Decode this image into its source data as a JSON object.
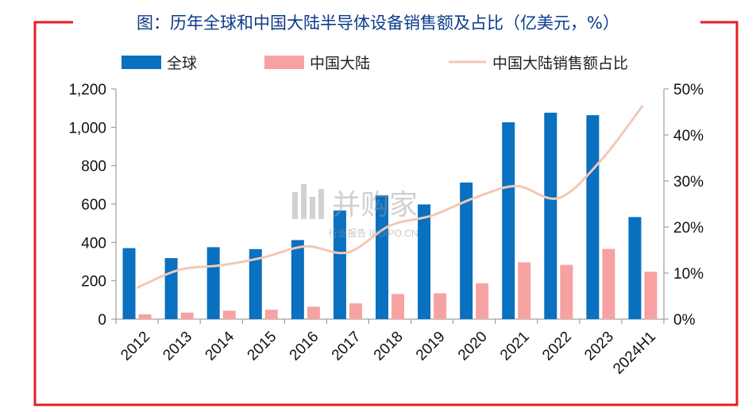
{
  "colors": {
    "frame": "#e41e26",
    "title": "#0b3a8c",
    "global": "#0a70c0",
    "china": "#f7a2a2",
    "share": "#f2c9b4",
    "axis": "#8c8c8c"
  },
  "watermark": {
    "brand": "并购家",
    "sub": "行业报告 IPOIPO.CN"
  },
  "chart_data": {
    "type": "bar",
    "title": "图：历年全球和中国大陆半导体设备销售额及占比（亿美元，%）",
    "categories": [
      "2012",
      "2013",
      "2014",
      "2015",
      "2016",
      "2017",
      "2018",
      "2019",
      "2020",
      "2021",
      "2022",
      "2023",
      "2024H1"
    ],
    "series": [
      {
        "name": "全球",
        "type": "bar",
        "axis": "left",
        "values": [
          370,
          318,
          375,
          365,
          412,
          566,
          645,
          598,
          712,
          1026,
          1076,
          1063,
          532
        ]
      },
      {
        "name": "中国大陆",
        "type": "bar",
        "axis": "left",
        "values": [
          25,
          34,
          44,
          49,
          65,
          82,
          131,
          135,
          187,
          296,
          283,
          366,
          247
        ]
      },
      {
        "name": "中国大陆销售额占比",
        "type": "line",
        "axis": "right",
        "values": [
          6.8,
          10.7,
          11.7,
          13.4,
          15.8,
          14.5,
          20.3,
          22.5,
          26.3,
          28.9,
          26.3,
          34.4,
          46.4
        ]
      }
    ],
    "y_left": {
      "min": 0,
      "max": 1200,
      "ticks": [
        "0",
        "200",
        "400",
        "600",
        "800",
        "1,000",
        "1,200"
      ]
    },
    "y_right": {
      "min": 0,
      "max": 50,
      "ticks": [
        "0%",
        "10%",
        "20%",
        "30%",
        "40%",
        "50%"
      ]
    },
    "legend_position": "top",
    "grid": false
  }
}
